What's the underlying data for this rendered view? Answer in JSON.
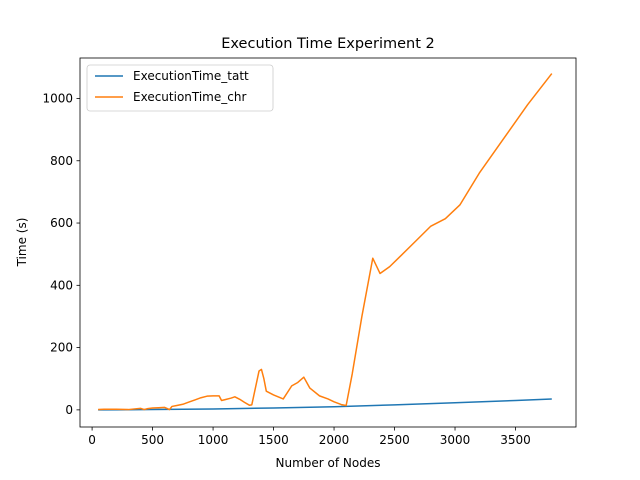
{
  "chart_data": {
    "type": "line",
    "title": "Execution Time Experiment 2",
    "xlabel": "Number of Nodes",
    "ylabel": "Time (s)",
    "xlim": [
      -100,
      4000
    ],
    "ylim": [
      -55,
      1130
    ],
    "xticks": [
      0,
      500,
      1000,
      1500,
      2000,
      2500,
      3000,
      3500
    ],
    "yticks": [
      0,
      200,
      400,
      600,
      800,
      1000
    ],
    "grid": false,
    "legend_position": "top-left",
    "series": [
      {
        "name": "ExecutionTime_tatt",
        "color": "#1f77b4",
        "x": [
          50,
          500,
          1000,
          1500,
          2000,
          2500,
          3000,
          3500,
          3800
        ],
        "y": [
          0,
          1,
          3,
          6,
          10,
          16,
          23,
          30,
          35
        ]
      },
      {
        "name": "ExecutionTime_chr",
        "color": "#ff7f0e",
        "x": [
          50,
          100,
          200,
          300,
          350,
          400,
          430,
          460,
          500,
          550,
          600,
          640,
          660,
          700,
          750,
          800,
          850,
          900,
          950,
          1000,
          1050,
          1070,
          1100,
          1150,
          1180,
          1220,
          1260,
          1300,
          1320,
          1380,
          1400,
          1420,
          1440,
          1500,
          1580,
          1650,
          1700,
          1750,
          1800,
          1880,
          1950,
          2000,
          2060,
          2100,
          2150,
          2230,
          2320,
          2380,
          2460,
          2560,
          2680,
          2800,
          2920,
          3040,
          3200,
          3400,
          3600,
          3800
        ],
        "y": [
          1,
          2,
          2,
          1,
          3,
          5,
          1,
          4,
          6,
          7,
          8,
          1,
          11,
          14,
          18,
          25,
          32,
          39,
          44,
          45,
          45,
          30,
          33,
          38,
          42,
          34,
          24,
          15,
          16,
          125,
          130,
          100,
          60,
          48,
          35,
          77,
          88,
          105,
          70,
          45,
          35,
          26,
          17,
          14,
          115,
          300,
          487,
          438,
          460,
          498,
          544,
          590,
          614,
          658,
          760,
          870,
          980,
          1080
        ]
      }
    ]
  }
}
